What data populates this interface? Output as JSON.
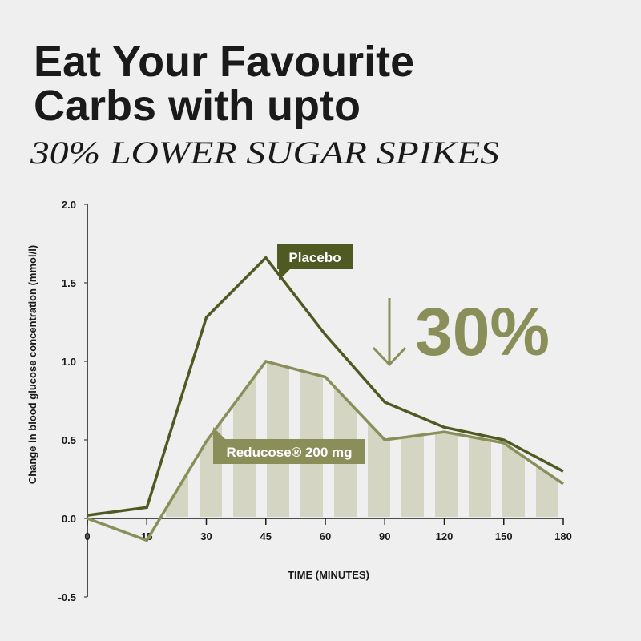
{
  "chart_data": {
    "type": "line",
    "title": [
      "Eat Your Favourite",
      "Carbs with upto"
    ],
    "subtitle": "30% LOWER SUGAR SPIKES",
    "annotation": "30%",
    "x_label": "TIME (MINUTES)",
    "y_label": "Change in blood glucose concentration (mmol/l)",
    "categories": [
      "0",
      "15",
      "30",
      "45",
      "60",
      "90",
      "120",
      "150",
      "180"
    ],
    "series": [
      {
        "name": "Placebo",
        "color": "#4f5a23",
        "values": [
          0.02,
          0.07,
          1.28,
          1.66,
          1.17,
          0.74,
          0.58,
          0.5,
          0.3
        ]
      },
      {
        "name": "Reducose® 200 mg",
        "color": "#8a8f5a",
        "values": [
          0.0,
          -0.14,
          0.49,
          1.0,
          0.9,
          0.5,
          0.55,
          0.48,
          0.22
        ]
      }
    ],
    "ylim": [
      -0.5,
      2.0
    ],
    "yticks": [
      {
        "value": -0.5,
        "label": "-0.5"
      },
      {
        "value": 0,
        "label": "0.0"
      },
      {
        "value": 0.5,
        "label": "0.5"
      },
      {
        "value": 1,
        "label": "1.0"
      },
      {
        "value": 1.5,
        "label": "1.5"
      },
      {
        "value": 2,
        "label": "2.0"
      }
    ]
  }
}
